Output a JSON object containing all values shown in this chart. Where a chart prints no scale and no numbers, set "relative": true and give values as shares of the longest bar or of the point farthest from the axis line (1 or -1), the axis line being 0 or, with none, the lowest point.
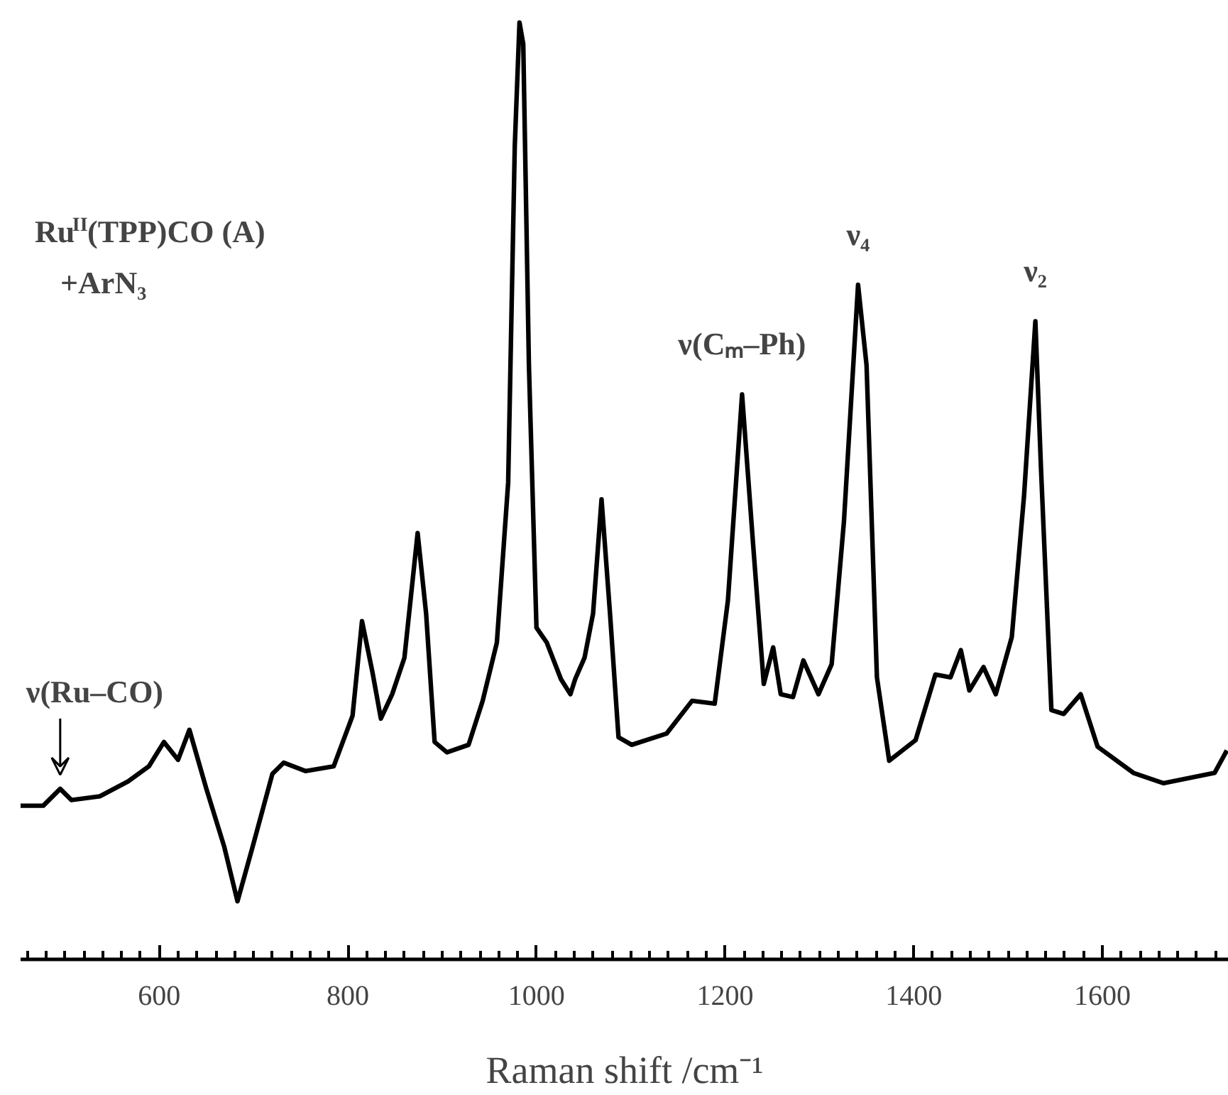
{
  "chart_data": {
    "type": "line",
    "relative": true,
    "xlabel": "Raman shift /cm⁻¹",
    "xlim": [
      453,
      1734
    ],
    "xticks": [
      {
        "value": 460,
        "label": null
      },
      {
        "value": 480,
        "label": null
      },
      {
        "value": 500,
        "label": null
      },
      {
        "value": 520,
        "label": null
      },
      {
        "value": 540,
        "label": null
      },
      {
        "value": 560,
        "label": null
      },
      {
        "value": 580,
        "label": null
      },
      600,
      {
        "value": 620,
        "label": null
      },
      {
        "value": 640,
        "label": null
      },
      {
        "value": 660,
        "label": null
      },
      {
        "value": 680,
        "label": null
      },
      {
        "value": 700,
        "label": null
      },
      {
        "value": 720,
        "label": null
      },
      {
        "value": 740,
        "label": null
      },
      {
        "value": 760,
        "label": null
      },
      {
        "value": 780,
        "label": null
      },
      800,
      {
        "value": 820,
        "label": null
      },
      {
        "value": 840,
        "label": null
      },
      {
        "value": 860,
        "label": null
      },
      {
        "value": 880,
        "label": null
      },
      {
        "value": 900,
        "label": null
      },
      {
        "value": 920,
        "label": null
      },
      {
        "value": 940,
        "label": null
      },
      {
        "value": 960,
        "label": null
      },
      {
        "value": 980,
        "label": null
      },
      1000,
      {
        "value": 1020,
        "label": null
      },
      {
        "value": 1040,
        "label": null
      },
      {
        "value": 1060,
        "label": null
      },
      {
        "value": 1080,
        "label": null
      },
      {
        "value": 1100,
        "label": null
      },
      {
        "value": 1120,
        "label": null
      },
      {
        "value": 1140,
        "label": null
      },
      {
        "value": 1160,
        "label": null
      },
      {
        "value": 1180,
        "label": null
      },
      1200,
      {
        "value": 1220,
        "label": null
      },
      {
        "value": 1240,
        "label": null
      },
      {
        "value": 1260,
        "label": null
      },
      {
        "value": 1280,
        "label": null
      },
      {
        "value": 1300,
        "label": null
      },
      {
        "value": 1320,
        "label": null
      },
      {
        "value": 1340,
        "label": null
      },
      {
        "value": 1360,
        "label": null
      },
      {
        "value": 1380,
        "label": null
      },
      1400,
      {
        "value": 1420,
        "label": null
      },
      {
        "value": 1440,
        "label": null
      },
      {
        "value": 1460,
        "label": null
      },
      {
        "value": 1480,
        "label": null
      },
      {
        "value": 1500,
        "label": null
      },
      {
        "value": 1520,
        "label": null
      },
      {
        "value": 1540,
        "label": null
      },
      {
        "value": 1560,
        "label": null
      },
      {
        "value": 1580,
        "label": null
      },
      1600,
      {
        "value": 1620,
        "label": null
      },
      {
        "value": 1640,
        "label": null
      },
      {
        "value": 1660,
        "label": null
      },
      {
        "value": 1680,
        "label": null
      },
      {
        "value": 1700,
        "label": null
      },
      {
        "value": 1720,
        "label": null
      }
    ],
    "grid": false,
    "marker": "none",
    "line_style": "solid",
    "series": [
      {
        "color": "#000000",
        "x": [
          453,
          477,
          495,
          507,
          537,
          567,
          589,
          605,
          620,
          632,
          650,
          669,
          683,
          699,
          720,
          732,
          755,
          785,
          805,
          815,
          826,
          835,
          847,
          860,
          874,
          883,
          892,
          905,
          928,
          943,
          958,
          970,
          977,
          982,
          986,
          992,
          1000,
          1011,
          1026,
          1036,
          1041,
          1051,
          1060,
          1069,
          1078,
          1087,
          1101,
          1138,
          1165,
          1189,
          1203,
          1218,
          1230,
          1241,
          1251,
          1259,
          1272,
          1283,
          1299,
          1313,
          1326,
          1341,
          1350,
          1361,
          1374,
          1402,
          1423,
          1439,
          1450,
          1459,
          1474,
          1487,
          1504,
          1517,
          1529,
          1535,
          1546,
          1559,
          1577,
          1595,
          1633,
          1665,
          1719,
          1732
        ],
        "values": [
          0.164,
          0.164,
          0.182,
          0.17,
          0.174,
          0.19,
          0.206,
          0.232,
          0.213,
          0.245,
          0.182,
          0.12,
          0.062,
          0.12,
          0.198,
          0.21,
          0.201,
          0.206,
          0.26,
          0.361,
          0.307,
          0.257,
          0.283,
          0.322,
          0.455,
          0.369,
          0.232,
          0.221,
          0.229,
          0.276,
          0.338,
          0.509,
          0.868,
          1.0,
          0.977,
          0.634,
          0.354,
          0.338,
          0.299,
          0.283,
          0.299,
          0.322,
          0.369,
          0.491,
          0.369,
          0.237,
          0.229,
          0.241,
          0.276,
          0.273,
          0.383,
          0.603,
          0.439,
          0.294,
          0.333,
          0.283,
          0.28,
          0.319,
          0.283,
          0.315,
          0.467,
          0.72,
          0.634,
          0.301,
          0.212,
          0.234,
          0.304,
          0.301,
          0.33,
          0.287,
          0.312,
          0.283,
          0.344,
          0.495,
          0.681,
          0.523,
          0.266,
          0.262,
          0.283,
          0.227,
          0.199,
          0.188,
          0.199,
          0.223
        ]
      }
    ],
    "annotations": [
      "Ru$^{II}$(TPP)CO (A)",
      "+ArN₃",
      {
        "text": "ν(Ru–CO)",
        "x": 495,
        "y": 0.182
      },
      {
        "text": "ν(Cₘ–Ph)",
        "x": 1218,
        "y": 0.603
      },
      {
        "text": "ν₄",
        "x": 1341,
        "y": 0.72
      },
      {
        "text": "ν₂",
        "x": 1529,
        "y": 0.681
      }
    ]
  }
}
